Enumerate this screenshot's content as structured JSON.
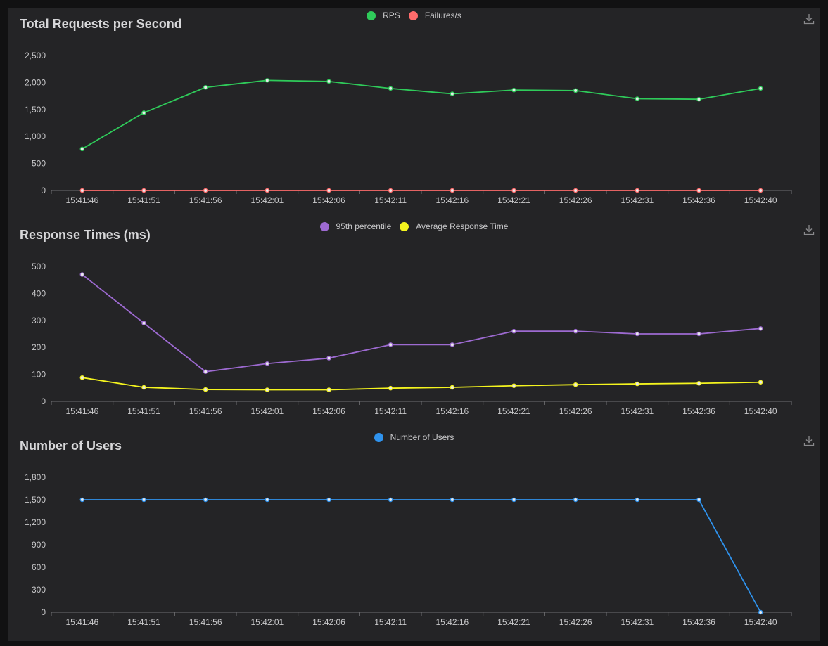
{
  "chart_data": [
    {
      "type": "line",
      "title": "Total Requests per Second",
      "categories": [
        "15:41:46",
        "15:41:51",
        "15:41:56",
        "15:42:01",
        "15:42:06",
        "15:42:11",
        "15:42:16",
        "15:42:21",
        "15:42:26",
        "15:42:31",
        "15:42:36",
        "15:42:40"
      ],
      "yticks": [
        "0",
        "500",
        "1,000",
        "1,500",
        "2,000",
        "2,500"
      ],
      "ylim": [
        0,
        2500
      ],
      "grid": false,
      "legend_position": "top-center",
      "series": [
        {
          "name": "RPS",
          "color": "#2fcb5a",
          "values": [
            770,
            1440,
            1910,
            2040,
            2020,
            1890,
            1790,
            1860,
            1850,
            1700,
            1690,
            1890
          ]
        },
        {
          "name": "Failures/s",
          "color": "#ff6b6b",
          "values": [
            0,
            0,
            0,
            0,
            0,
            0,
            0,
            0,
            0,
            0,
            0,
            0
          ]
        }
      ]
    },
    {
      "type": "line",
      "title": "Response Times (ms)",
      "categories": [
        "15:41:46",
        "15:41:51",
        "15:41:56",
        "15:42:01",
        "15:42:06",
        "15:42:11",
        "15:42:16",
        "15:42:21",
        "15:42:26",
        "15:42:31",
        "15:42:36",
        "15:42:40"
      ],
      "yticks": [
        "0",
        "100",
        "200",
        "300",
        "400",
        "500"
      ],
      "ylim": [
        0,
        500
      ],
      "grid": false,
      "legend_position": "top-center",
      "series": [
        {
          "name": "95th percentile",
          "color": "#9d6ad1",
          "values": [
            470,
            290,
            110,
            140,
            160,
            210,
            210,
            260,
            260,
            250,
            250,
            270
          ]
        },
        {
          "name": "Average Response Time",
          "color": "#f5f51e",
          "values": [
            88,
            52,
            44,
            43,
            43,
            49,
            52,
            58,
            62,
            65,
            67,
            71
          ]
        }
      ]
    },
    {
      "type": "line",
      "title": "Number of Users",
      "categories": [
        "15:41:46",
        "15:41:51",
        "15:41:56",
        "15:42:01",
        "15:42:06",
        "15:42:11",
        "15:42:16",
        "15:42:21",
        "15:42:26",
        "15:42:31",
        "15:42:36",
        "15:42:40"
      ],
      "yticks": [
        "0",
        "300",
        "600",
        "900",
        "1,200",
        "1,500",
        "1,800"
      ],
      "ylim": [
        0,
        1800
      ],
      "grid": false,
      "legend_position": "top-center",
      "series": [
        {
          "name": "Number of Users",
          "color": "#2f93ee",
          "values": [
            1500,
            1500,
            1500,
            1500,
            1500,
            1500,
            1500,
            1500,
            1500,
            1500,
            1500,
            0
          ]
        }
      ]
    }
  ]
}
